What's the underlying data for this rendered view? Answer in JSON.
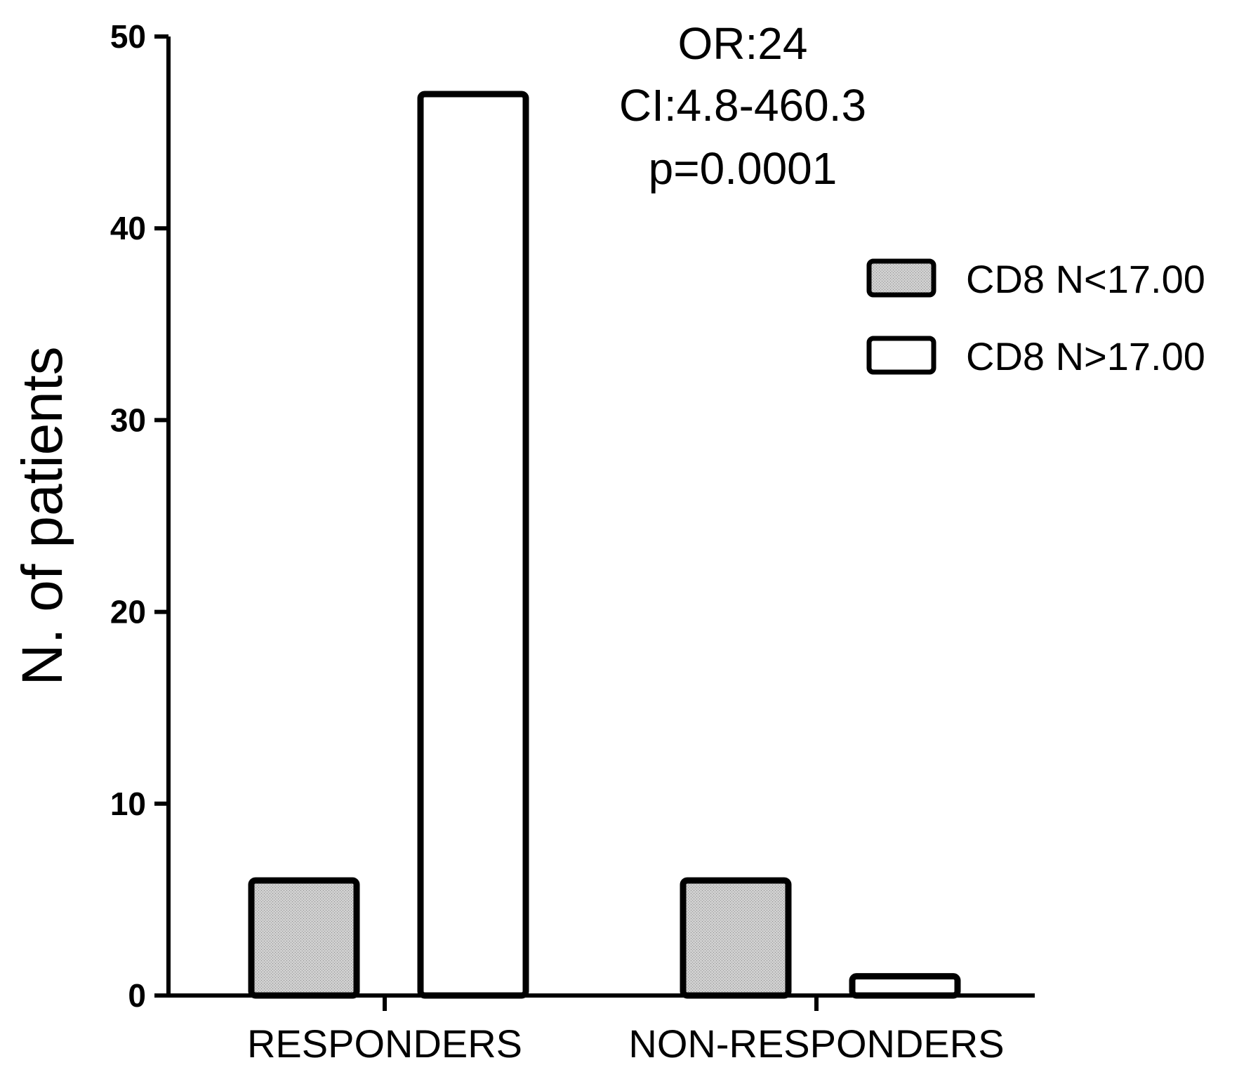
{
  "chart_data": {
    "type": "bar",
    "categories": [
      "RESPONDERS",
      "NON-RESPONDERS"
    ],
    "series": [
      {
        "name": "CD8 N<17.00",
        "values": [
          6,
          6
        ],
        "color": "#c8c8c8"
      },
      {
        "name": "CD8 N>17.00",
        "values": [
          47,
          1
        ],
        "color": "#ffffff"
      }
    ],
    "ylabel": "N. of patients",
    "xlabel": "",
    "ylim": [
      0,
      50
    ],
    "yticks": [
      0,
      10,
      20,
      30,
      40,
      50
    ],
    "grid": false,
    "legend_position": "right",
    "annotations": [
      "OR:24",
      "CI:4.8-460.3",
      "p=0.0001"
    ]
  }
}
